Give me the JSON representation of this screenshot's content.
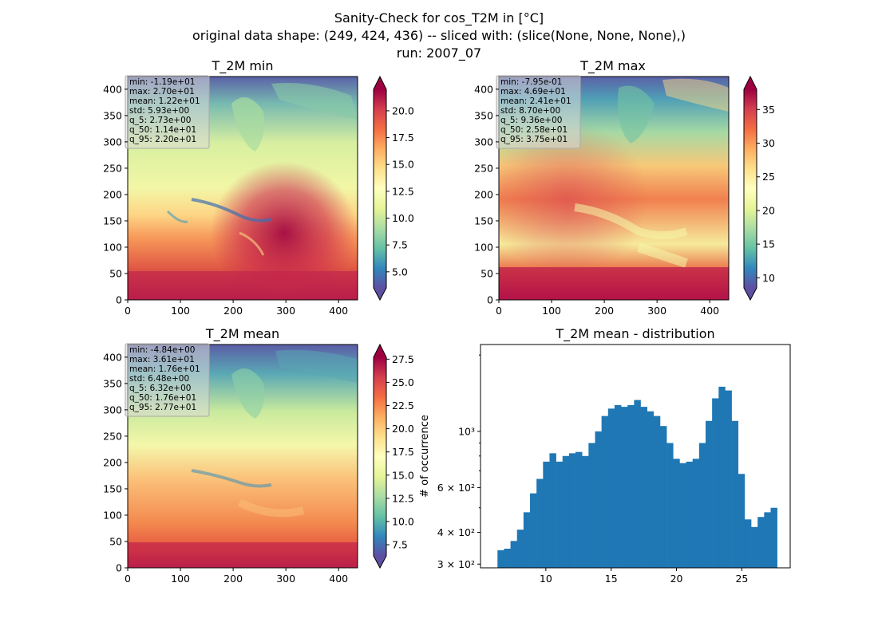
{
  "suptitle": [
    "Sanity-Check for cos_T2M in [°C]",
    "original data shape: (249, 424, 436) -- sliced with: (slice(None, None, None),)",
    "run: 2007_07"
  ],
  "panels": [
    {
      "title": "T_2M min",
      "stats": [
        "min: -1.19e+01",
        "max: 2.70e+01",
        "mean: 1.22e+01",
        "std: 5.93e+00",
        "q_5: 2.73e+00",
        "q_50: 1.14e+01",
        "q_95: 2.20e+01"
      ],
      "colorbar": {
        "vmin": 3.5,
        "vmax": 22,
        "ticks": [
          "5.0",
          "7.5",
          "10.0",
          "12.5",
          "15.0",
          "17.5",
          "20.0"
        ],
        "tick_values": [
          5,
          7.5,
          10,
          12.5,
          15,
          17.5,
          20
        ]
      }
    },
    {
      "title": "T_2M max",
      "stats": [
        "min: -7.95e-01",
        "max: 4.69e+01",
        "mean: 2.41e+01",
        "std: 8.70e+00",
        "q_5: 9.36e+00",
        "q_50: 2.58e+01",
        "q_95: 3.75e+01"
      ],
      "colorbar": {
        "vmin": 8.5,
        "vmax": 38,
        "ticks": [
          "10",
          "15",
          "20",
          "25",
          "30",
          "35"
        ],
        "tick_values": [
          10,
          15,
          20,
          25,
          30,
          35
        ]
      }
    },
    {
      "title": "T_2M mean",
      "stats": [
        "min: -4.84e+00",
        "max: 3.61e+01",
        "mean: 1.76e+01",
        "std: 6.48e+00",
        "q_5: 6.32e+00",
        "q_50: 1.76e+01",
        "q_95: 2.77e+01"
      ],
      "colorbar": {
        "vmin": 6.3,
        "vmax": 27.7,
        "ticks": [
          "7.5",
          "10.0",
          "12.5",
          "15.0",
          "17.5",
          "20.0",
          "22.5",
          "25.0",
          "27.5"
        ],
        "tick_values": [
          7.5,
          10,
          12.5,
          15,
          17.5,
          20,
          22.5,
          25,
          27.5
        ]
      }
    }
  ],
  "map_axes": {
    "x_ticks": [
      "0",
      "100",
      "200",
      "300",
      "400"
    ],
    "x_tick_values": [
      0,
      100,
      200,
      300,
      400
    ],
    "y_ticks": [
      "0",
      "50",
      "100",
      "150",
      "200",
      "250",
      "300",
      "350",
      "400"
    ],
    "y_tick_values": [
      0,
      50,
      100,
      150,
      200,
      250,
      300,
      350,
      400
    ],
    "xlim": [
      0,
      436
    ],
    "ylim": [
      0,
      424
    ]
  },
  "colormap": "Spectral_r",
  "bar_color": "#1f77b4",
  "chart_data": [
    {
      "type": "heatmap",
      "title": "T_2M min",
      "xlim": [
        0,
        436
      ],
      "ylim": [
        0,
        424
      ],
      "clim": [
        3.5,
        22
      ],
      "colormap": "Spectral_r"
    },
    {
      "type": "heatmap",
      "title": "T_2M max",
      "xlim": [
        0,
        436
      ],
      "ylim": [
        0,
        424
      ],
      "clim": [
        8.5,
        38
      ],
      "colormap": "Spectral_r"
    },
    {
      "type": "heatmap",
      "title": "T_2M mean",
      "xlim": [
        0,
        436
      ],
      "ylim": [
        0,
        424
      ],
      "clim": [
        6.3,
        27.7
      ],
      "colormap": "Spectral_r"
    },
    {
      "type": "bar",
      "title": "T_2M mean - distribution",
      "ylabel": "# of occurrence",
      "yscale": "log",
      "xlim": [
        5,
        28.7
      ],
      "ylim": [
        290,
        2200
      ],
      "x_ticks": [
        "10",
        "15",
        "20",
        "25"
      ],
      "x_tick_values": [
        10,
        15,
        20,
        25
      ],
      "y_ticks": [
        "3 × 10²",
        "4 × 10²",
        "6 × 10²",
        "10³"
      ],
      "y_tick_values": [
        300,
        400,
        600,
        1000
      ],
      "bin_start": 6.3,
      "bin_end": 27.7,
      "x": [
        6.5,
        7,
        7.5,
        8,
        8.5,
        9,
        9.5,
        10,
        10.5,
        11,
        11.5,
        12,
        12.5,
        13,
        13.5,
        14,
        14.5,
        15,
        15.5,
        16,
        16.5,
        17,
        17.5,
        18,
        18.5,
        19,
        19.5,
        20,
        20.5,
        21,
        21.5,
        22,
        22.5,
        23,
        23.5,
        24,
        24.5,
        25,
        25.5,
        26,
        26.5,
        27,
        27.5
      ],
      "values": [
        340,
        345,
        370,
        410,
        480,
        570,
        650,
        760,
        820,
        760,
        800,
        820,
        830,
        800,
        900,
        1000,
        1150,
        1230,
        1270,
        1250,
        1270,
        1330,
        1250,
        1200,
        1150,
        1050,
        900,
        780,
        750,
        760,
        780,
        900,
        1100,
        1350,
        1500,
        1450,
        1100,
        680,
        450,
        420,
        460,
        480,
        500
      ]
    }
  ]
}
